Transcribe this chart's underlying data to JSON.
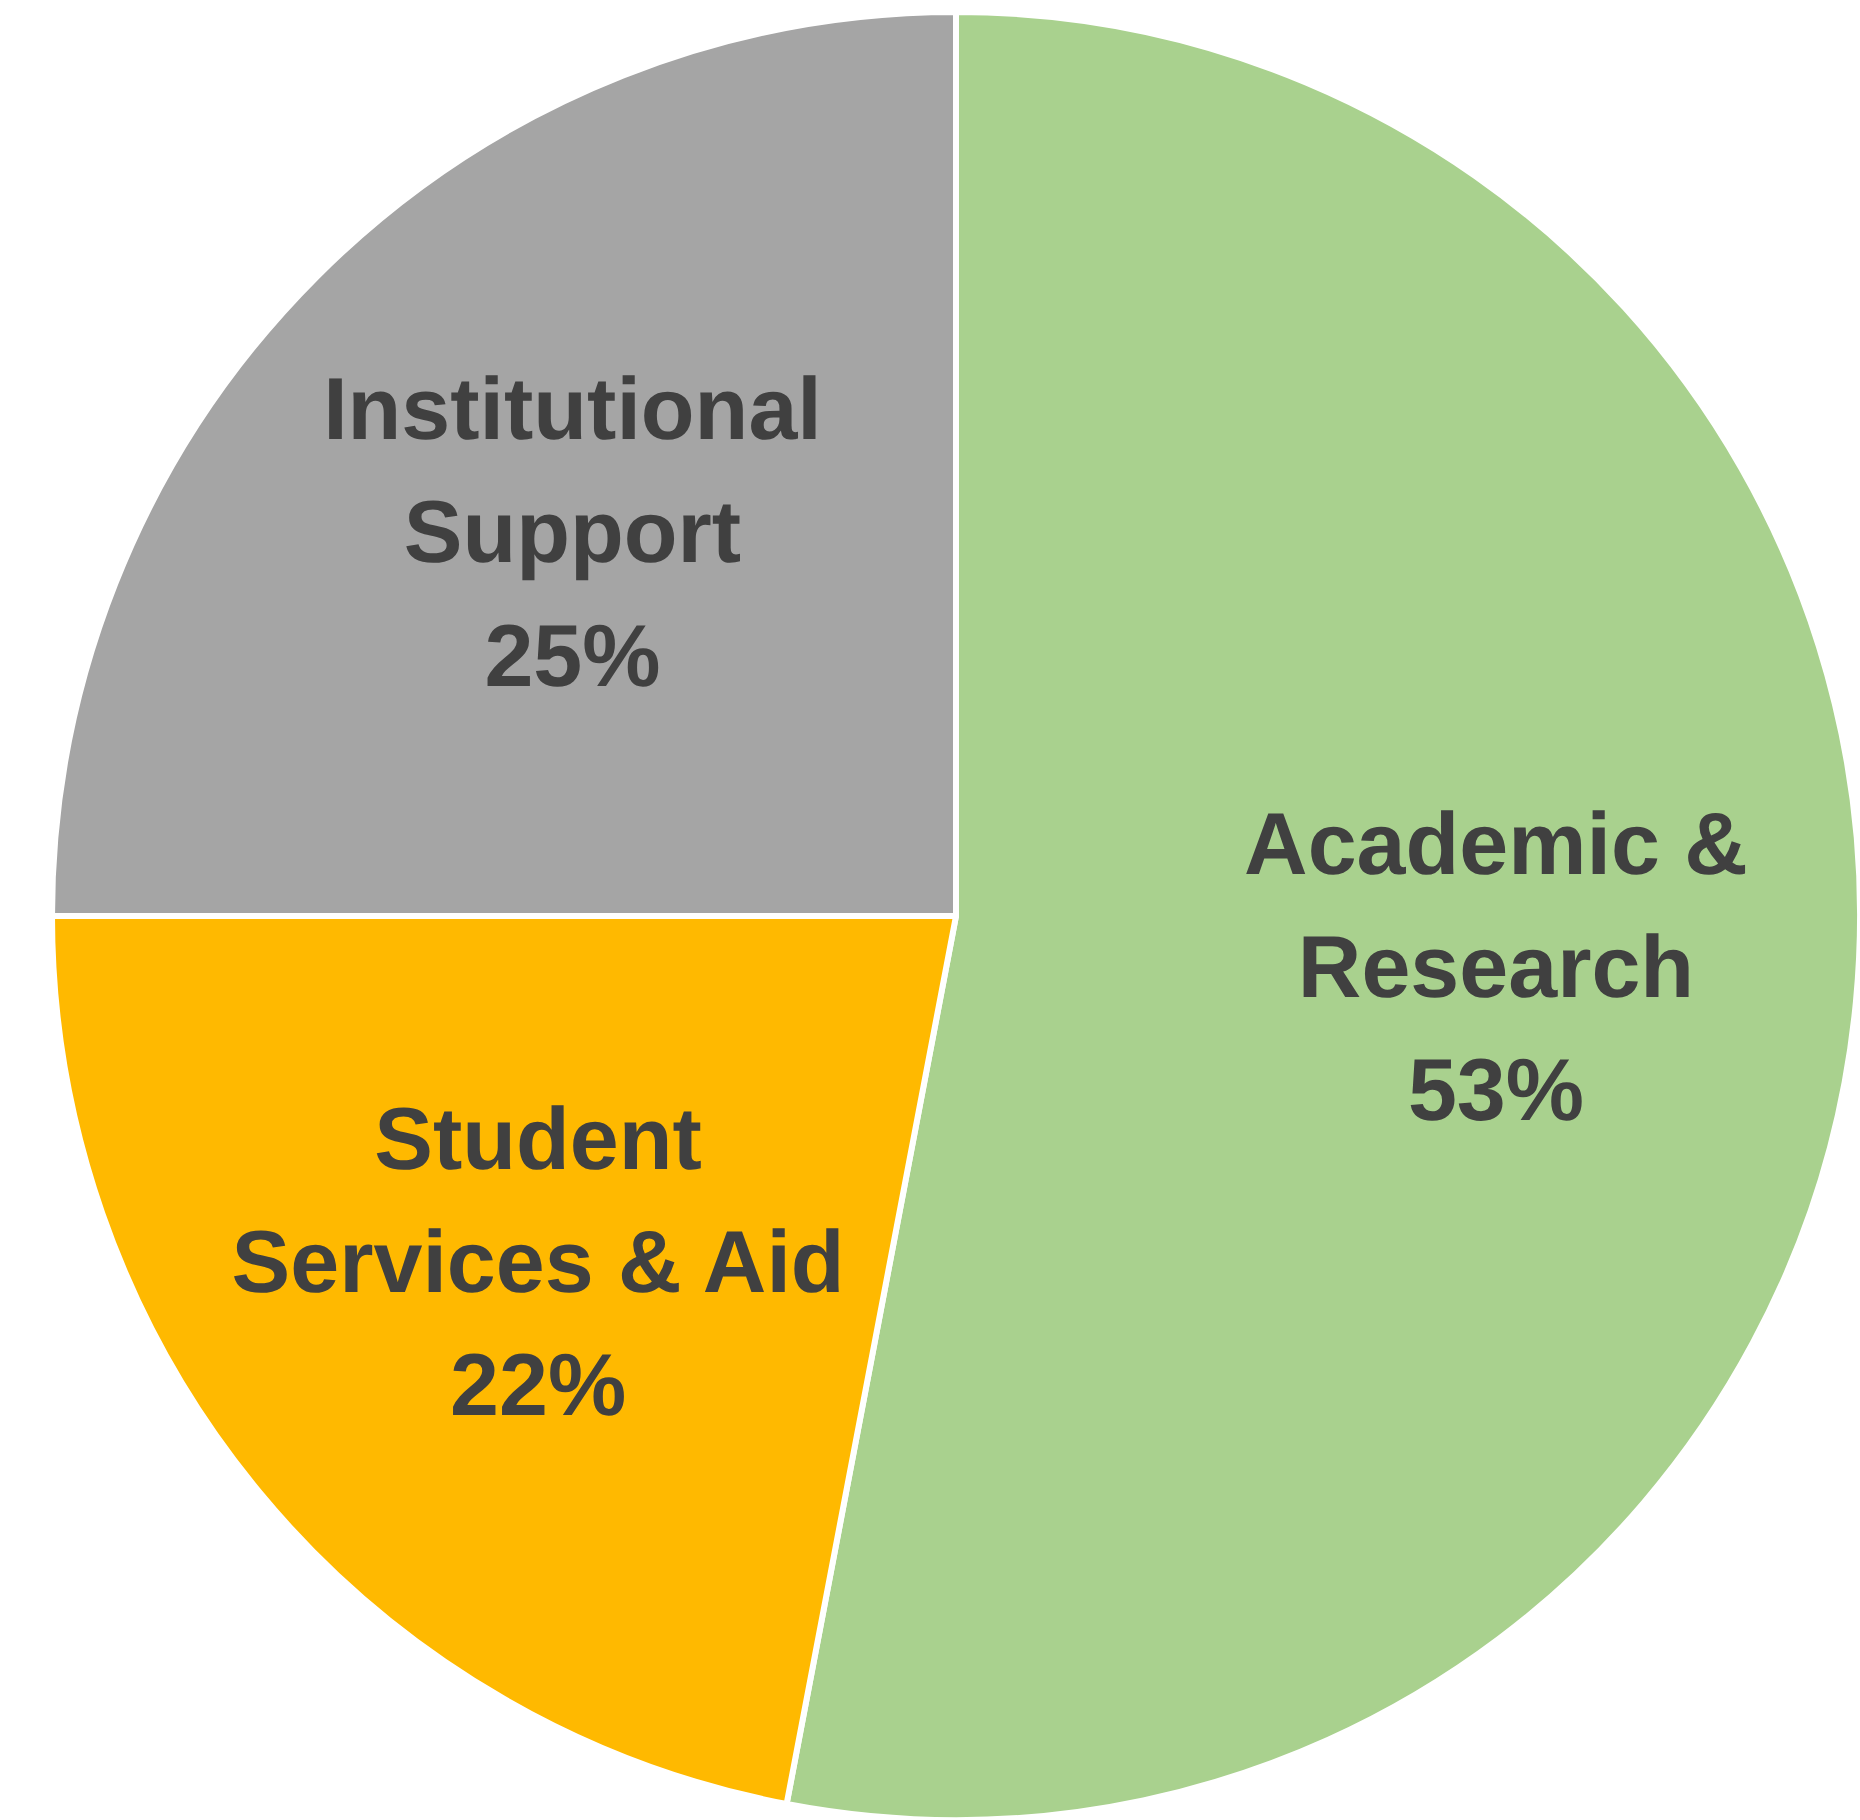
{
  "chart_data": {
    "type": "pie",
    "categories": [
      "Academic & Research",
      "Student Services & Aid",
      "Institutional Support"
    ],
    "values": [
      53,
      22,
      25
    ],
    "colors": [
      "#a9d18e",
      "#ffb900",
      "#a5a5a5"
    ],
    "value_labels": [
      "53%",
      "22%",
      "25%"
    ]
  }
}
